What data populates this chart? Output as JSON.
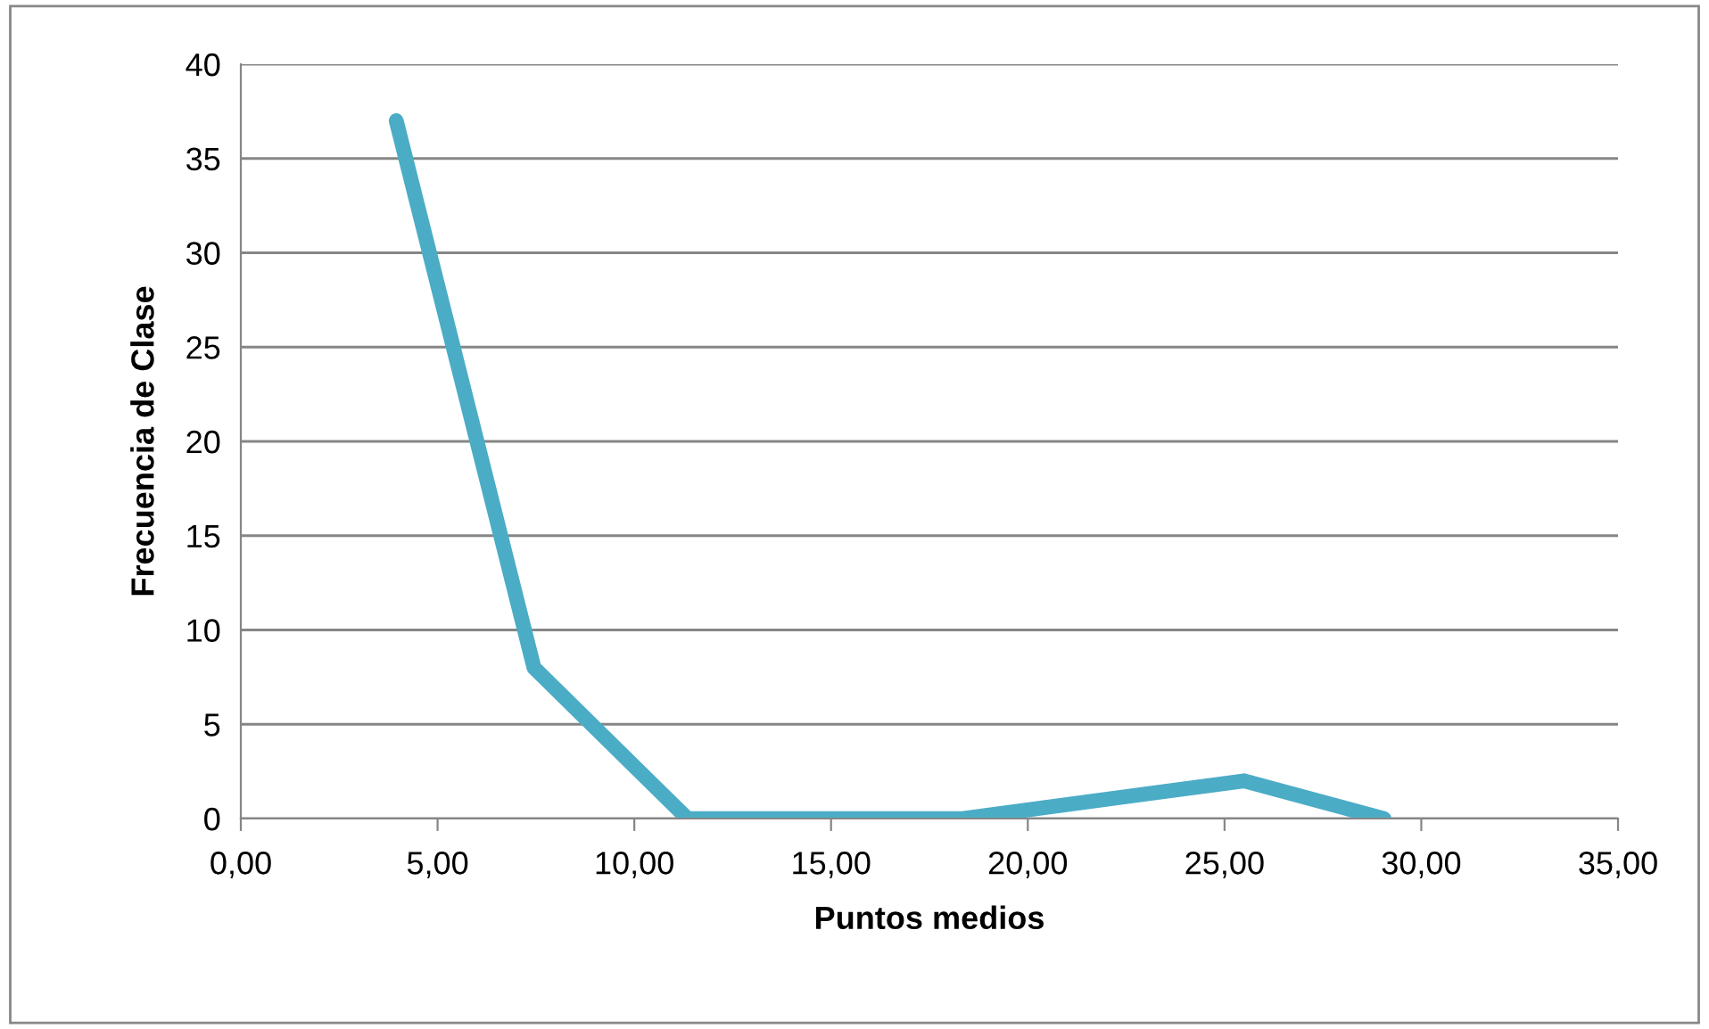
{
  "chart_data": {
    "type": "line",
    "xlabel": "Puntos medios",
    "ylabel": "Frecuencia de Clase",
    "x": [
      3.95,
      7.45,
      11.35,
      18.35,
      25.5,
      29.05
    ],
    "series": [
      {
        "color": "#4bacc6",
        "values": [
          37,
          8,
          0,
          0,
          2,
          0
        ]
      }
    ],
    "xlim": [
      0,
      35
    ],
    "ylim": [
      0,
      40
    ],
    "xticks": [
      {
        "value": 0,
        "label": "0,00"
      },
      {
        "value": 5,
        "label": "5,00"
      },
      {
        "value": 10,
        "label": "10,00"
      },
      {
        "value": 15,
        "label": "15,00"
      },
      {
        "value": 20,
        "label": "20,00"
      },
      {
        "value": 25,
        "label": "25,00"
      },
      {
        "value": 30,
        "label": "30,00"
      },
      {
        "value": 35,
        "label": "35,00"
      }
    ],
    "yticks": [
      0,
      5,
      10,
      15,
      20,
      25,
      30,
      35,
      40
    ],
    "grid": "y",
    "legend": false,
    "marker": "none",
    "line_style": "solid"
  }
}
